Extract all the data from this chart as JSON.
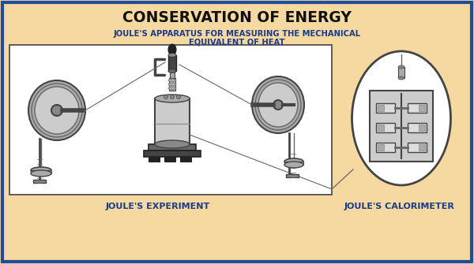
{
  "title": "CONSERVATION OF ENERGY",
  "subtitle_line1": "JOULE'S APPARATUS FOR MEASURING THE MECHANICAL",
  "subtitle_line2": "EQUIVALENT OF HEAT",
  "label_experiment": "JOULE'S EXPERIMENT",
  "label_calorimeter": "JOULE'S CALORIMETER",
  "bg_color": "#F5D9A0",
  "border_color": "#1E4D99",
  "box_color": "#FFFFFF",
  "title_color": "#111111",
  "subtitle_color": "#1A3A8A",
  "label_color": "#1A3A8A",
  "g0": "#222222",
  "g1": "#444444",
  "g2": "#666666",
  "g3": "#888888",
  "g4": "#AAAAAA",
  "g5": "#CCCCCC",
  "g6": "#DDDDDD",
  "g7": "#EEEEEE"
}
